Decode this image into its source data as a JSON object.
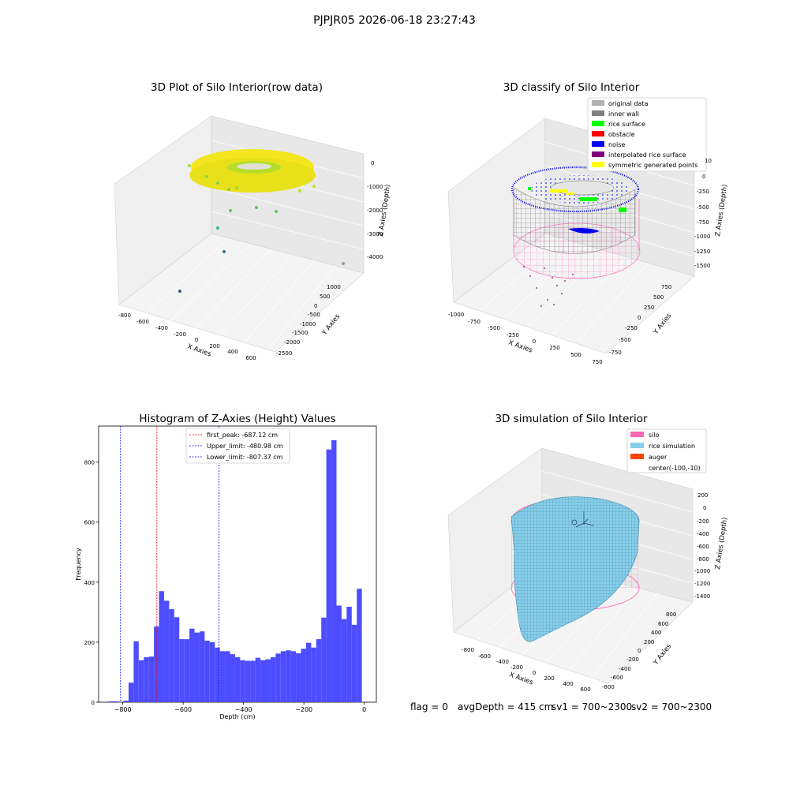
{
  "figure": {
    "suptitle": "PJPJR05 2026-06-18 23:27:43"
  },
  "footer": {
    "flag": "flag = 0",
    "avg": "avgDepth = 415 cm",
    "sv1": "sv1 = 700~2300",
    "sv2": "sv2 = 700~2300"
  },
  "chart_data": [
    {
      "type": "scatter",
      "title": "3D Plot of Silo Interior(row data)",
      "xlabel": "X Axies",
      "ylabel": "Y Axies",
      "zlabel": "Z Axies (Depth)",
      "xticks": [
        "-800",
        "-600",
        "-400",
        "-200",
        "0",
        "200",
        "400",
        "600"
      ],
      "yticks": [
        "1000",
        "500",
        "0",
        "-500",
        "-1000",
        "-1500",
        "-2000",
        "-2500"
      ],
      "zticks": [
        "0",
        "-1000",
        "-2000",
        "-3000",
        "-4000"
      ],
      "colormap": "viridis",
      "colors": {
        "high": "#f4e61e",
        "mid": "#7ad151",
        "low": "#3b528b"
      }
    },
    {
      "type": "scatter",
      "title": "3D classify of Silo Interior",
      "xlabel": "X Axies",
      "ylabel": "Y Axies",
      "zlabel": "Z Axies (Depth)",
      "xticks": [
        "-1000",
        "-750",
        "-500",
        "-250",
        "0",
        "250",
        "500",
        "750"
      ],
      "yticks": [
        "750",
        "500",
        "250",
        "0",
        "-250",
        "-500",
        "-750"
      ],
      "zticks": [
        "10",
        "0",
        "-250",
        "-500",
        "-750",
        "-1000",
        "-1250",
        "-1500"
      ],
      "legend_position": "top-right",
      "legend": [
        {
          "label": "original data",
          "color": "#b0b0b0"
        },
        {
          "label": "inner wall",
          "color": "#808080"
        },
        {
          "label": "rice surface",
          "color": "#00ff00"
        },
        {
          "label": "obstacle",
          "color": "#ff0000"
        },
        {
          "label": "noise",
          "color": "#0000ee"
        },
        {
          "label": "interpolated rice surface",
          "color": "#800080"
        },
        {
          "label": "symmetric generated points",
          "color": "#ffff00"
        }
      ]
    },
    {
      "type": "bar",
      "title": "Histogram of Z-Axies (Height) Values",
      "xlabel": "Depth (cm)",
      "ylabel": "Frequency",
      "xlim": [
        -880,
        40
      ],
      "ylim": [
        0,
        920
      ],
      "xticks": [
        -800,
        -600,
        -400,
        -200,
        0
      ],
      "yticks": [
        0,
        200,
        400,
        600,
        800
      ],
      "bar_color": "#4d4dff",
      "bins": {
        "start": -848,
        "width": 16.8,
        "values": [
          3,
          3,
          0,
          5,
          65,
          203,
          140,
          150,
          152,
          252,
          370,
          338,
          310,
          283,
          210,
          210,
          245,
          232,
          236,
          205,
          200,
          182,
          170,
          170,
          160,
          150,
          140,
          138,
          138,
          148,
          140,
          143,
          150,
          162,
          170,
          173,
          170,
          163,
          178,
          198,
          182,
          210,
          282,
          842,
          873,
          322,
          277,
          318,
          258,
          378
        ]
      },
      "vlines": [
        {
          "x": -687.12,
          "color": "#ff0000",
          "label": "first_peak: -687.12 cm"
        },
        {
          "x": -480.98,
          "color": "#0000ff",
          "label": "Upper_limit: -480.98 cm"
        },
        {
          "x": -807.37,
          "color": "#0000ff",
          "label": "Lower_limit: -807.37 cm"
        }
      ],
      "legend_position": "top-center"
    },
    {
      "type": "area",
      "title": "3D simulation of Silo Interior",
      "xlabel": "X Axies",
      "ylabel": "Y Axies",
      "zlabel": "Z Axies (Depth)",
      "xticks": [
        "-800",
        "-600",
        "-400",
        "-200",
        "0",
        "200",
        "400",
        "600"
      ],
      "yticks": [
        "800",
        "600",
        "400",
        "200",
        "0",
        "-200",
        "-400",
        "-600",
        "-800"
      ],
      "zticks": [
        "200",
        "0",
        "-200",
        "-400",
        "-600",
        "-800",
        "-1000",
        "-1200",
        "-1400"
      ],
      "legend_position": "top-right",
      "legend": [
        {
          "label": "silo",
          "color": "#ff69b4"
        },
        {
          "label": "rice simulation",
          "color": "#87ceeb"
        },
        {
          "label": "auger",
          "color": "#ff4500"
        },
        {
          "label": "center(-100,-10)",
          "color": ""
        }
      ]
    }
  ]
}
